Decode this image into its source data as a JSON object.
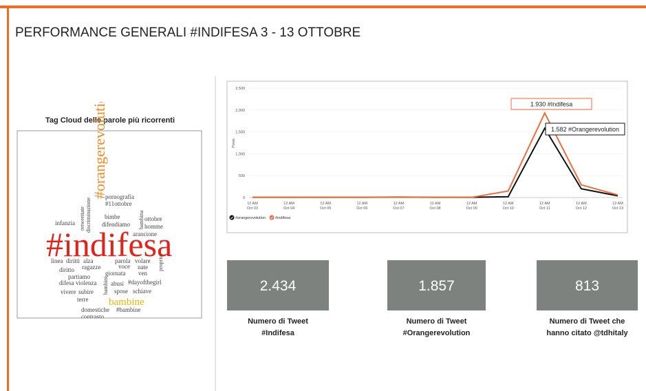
{
  "title": "PERFORMANCE GENERALI #INDIFESA 3 - 13 OTTOBRE",
  "tag_cloud": {
    "title": "Tag Cloud delle parole più ricorrenti",
    "words": [
      "#orangerevolution",
      "pornografia",
      "#11ottobre",
      "retweettate",
      "discriminazione",
      "bambina",
      "bimbe",
      "ottobre",
      "difendiamo",
      "homme",
      "infanzia",
      "arancione",
      "#indifesa",
      "linea",
      "diritti",
      "alza",
      "parola",
      "volare",
      "proprio",
      "ragazze",
      "voce",
      "nate",
      "diritto",
      "giornata",
      "ven",
      "partiamo",
      "difesa",
      "violenza",
      "bambini",
      "abusi",
      "#dayofthegirl",
      "vivere",
      "subire",
      "spose",
      "schiave",
      "terre",
      "bambine",
      "domestiche",
      "#bambine",
      "contrasto"
    ]
  },
  "chart_data": {
    "type": "line",
    "category_time": "12 AM",
    "categories": [
      "Oct 03",
      "Oct 04",
      "Oct 05",
      "Oct 06",
      "Oct 07",
      "Oct 08",
      "Oct 09",
      "Oct 10",
      "Oct 11",
      "Oct 12",
      "Oct 13"
    ],
    "ylabel": "Posts",
    "ylim": [
      0,
      2500
    ],
    "yticks": [
      0,
      500,
      {
        "value": 1000,
        "label": "1,000"
      },
      {
        "value": 1500,
        "label": "1,500"
      },
      {
        "value": 2000,
        "label": "2,000"
      },
      {
        "value": 2500,
        "label": "2,500"
      }
    ],
    "grid": true,
    "series": [
      {
        "name": "#orangerevolution",
        "color": "#111111",
        "values": [
          5,
          5,
          5,
          5,
          10,
          5,
          5,
          20,
          1582,
          200,
          40
        ]
      },
      {
        "name": "#indifesa",
        "color": "#f26b3a",
        "values": [
          5,
          5,
          5,
          5,
          5,
          5,
          5,
          150,
          1930,
          290,
          60
        ]
      }
    ],
    "annotations": [
      {
        "text": "1.930 #Indifesa",
        "series": 1
      },
      {
        "text": "1.582 #Orangerevolution",
        "series": 0
      }
    ]
  },
  "stats": [
    {
      "value": "2.434",
      "caption": [
        "Numero di Tweet",
        "#Indifesa"
      ]
    },
    {
      "value": "1.857",
      "caption": [
        "Numero di Tweet",
        "#Orangerevolution"
      ]
    },
    {
      "value": "813",
      "caption": [
        "Numero di Tweet che",
        "hanno citato @tdhitaly"
      ]
    }
  ]
}
